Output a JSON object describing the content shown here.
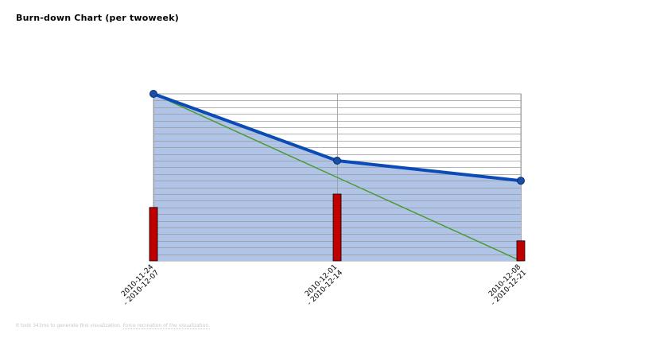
{
  "chart_data": {
    "type": "line",
    "title": "Burn-down Chart (per twoweek)",
    "xlabel": "",
    "ylabel": "",
    "categories": [
      [
        "2010-11-24",
        "- 2010-12-07"
      ],
      [
        "2010-12-01",
        "- 2010-12-14"
      ],
      [
        "2010-12-08",
        "- 2010-12-21"
      ]
    ],
    "ylim": [
      0,
      25
    ],
    "grid": true,
    "series": [
      {
        "kind": "area-line",
        "values": [
          25,
          15,
          12
        ],
        "color": "#0a4bb5",
        "fill": "#b0c4e8"
      },
      {
        "kind": "ideal-line",
        "values": [
          25,
          12.5,
          0
        ],
        "color": "#4a9a32"
      },
      {
        "kind": "bar",
        "values": [
          8,
          10,
          3
        ],
        "color": "#c00000"
      }
    ]
  },
  "footer": {
    "text": "It took 343ms to generate this visualization.",
    "link_text": "Force recreation of the visualization."
  }
}
